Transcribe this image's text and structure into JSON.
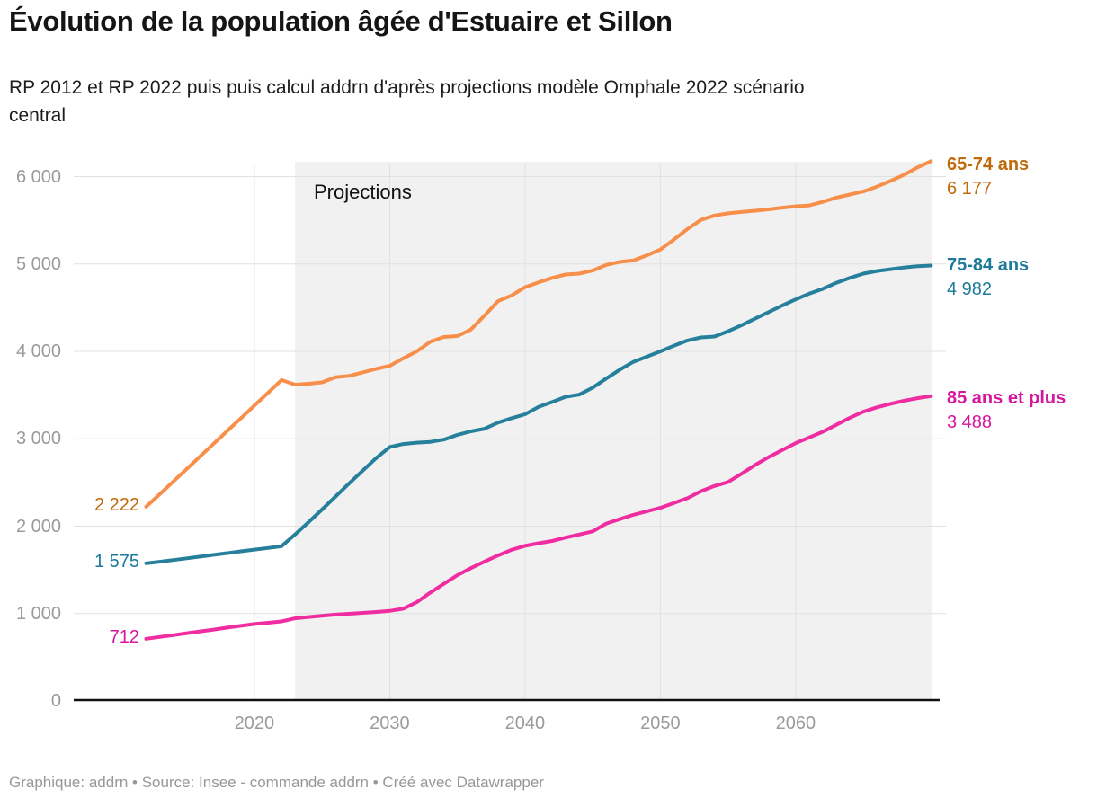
{
  "header": {
    "title": "Évolution de la population âgée d'Estuaire et Sillon",
    "subtitle": "RP 2012 et RP 2022 puis puis calcul addrn d'après projections modèle Omphale 2022 scénario central"
  },
  "footer": {
    "text": "Graphique: addrn • Source: Insee - commande addrn • Créé avec Datawrapper"
  },
  "chart_data": {
    "type": "line",
    "title": "Évolution de la population âgée d'Estuaire et Sillon",
    "xlabel": "",
    "ylabel": "",
    "x_start": 2012,
    "x_end": 2070,
    "ylim": [
      0,
      6200
    ],
    "grid": true,
    "legend_position": "right-end-labels",
    "background_color": "#ffffff",
    "projection_band": {
      "label": "Projections",
      "start_year": 2023,
      "end_year": 2070,
      "fill": "#f1f1f1"
    },
    "axis": {
      "tick_color": "#9a9a9a",
      "gridline_color": "#e1e1e1",
      "baseline_color": "#111111",
      "y_ticks": [
        0,
        1000,
        2000,
        3000,
        4000,
        5000,
        6000
      ],
      "y_tick_labels": [
        "0",
        "1 000",
        "2 000",
        "3 000",
        "4 000",
        "5 000",
        "6 000"
      ],
      "x_ticks": [
        2020,
        2030,
        2040,
        2050,
        2060
      ],
      "x_tick_labels": [
        "2020",
        "2030",
        "2040",
        "2050",
        "2060"
      ]
    },
    "series": [
      {
        "name": "65-74 ans",
        "color": "#f78f4b",
        "label_color": "#c06a0a",
        "start_value": 2222,
        "start_label": "2 222",
        "end_value": 6177,
        "end_label": "6 177",
        "values": [
          2222,
          2365,
          2510,
          2655,
          2800,
          2945,
          3090,
          3235,
          3380,
          3525,
          3672,
          3620,
          3630,
          3645,
          3705,
          3720,
          3760,
          3800,
          3835,
          3920,
          4000,
          4110,
          4165,
          4175,
          4250,
          4410,
          4575,
          4640,
          4735,
          4790,
          4840,
          4880,
          4890,
          4925,
          4990,
          5025,
          5040,
          5100,
          5165,
          5280,
          5400,
          5505,
          5555,
          5580,
          5595,
          5610,
          5625,
          5645,
          5660,
          5670,
          5710,
          5760,
          5795,
          5830,
          5885,
          5950,
          6020,
          6105,
          6177
        ]
      },
      {
        "name": "75-84 ans",
        "color": "#26809c",
        "label_color": "#1d7a99",
        "start_value": 1575,
        "start_label": "1 575",
        "end_value": 4982,
        "end_label": "4 982",
        "values": [
          1575,
          1593,
          1612,
          1632,
          1652,
          1672,
          1692,
          1712,
          1732,
          1750,
          1770,
          1905,
          2045,
          2190,
          2340,
          2490,
          2635,
          2780,
          2905,
          2940,
          2955,
          2965,
          2990,
          3045,
          3085,
          3115,
          3185,
          3235,
          3280,
          3365,
          3420,
          3480,
          3505,
          3585,
          3690,
          3790,
          3880,
          3940,
          4000,
          4065,
          4125,
          4160,
          4170,
          4230,
          4300,
          4375,
          4450,
          4525,
          4595,
          4660,
          4715,
          4785,
          4840,
          4890,
          4920,
          4940,
          4960,
          4975,
          4982
        ]
      },
      {
        "name": "85 ans et plus",
        "color": "#ef2da0",
        "label_color": "#d6169e",
        "start_value": 712,
        "start_label": "712",
        "end_value": 3488,
        "end_label": "3 488",
        "values": [
          712,
          732,
          753,
          775,
          796,
          817,
          839,
          860,
          880,
          895,
          910,
          945,
          960,
          975,
          988,
          998,
          1008,
          1018,
          1030,
          1055,
          1130,
          1240,
          1340,
          1440,
          1520,
          1595,
          1665,
          1730,
          1775,
          1805,
          1830,
          1870,
          1905,
          1940,
          2030,
          2080,
          2130,
          2170,
          2210,
          2265,
          2320,
          2400,
          2460,
          2505,
          2600,
          2700,
          2790,
          2870,
          2950,
          3015,
          3080,
          3160,
          3240,
          3310,
          3360,
          3400,
          3435,
          3465,
          3488
        ]
      }
    ]
  }
}
